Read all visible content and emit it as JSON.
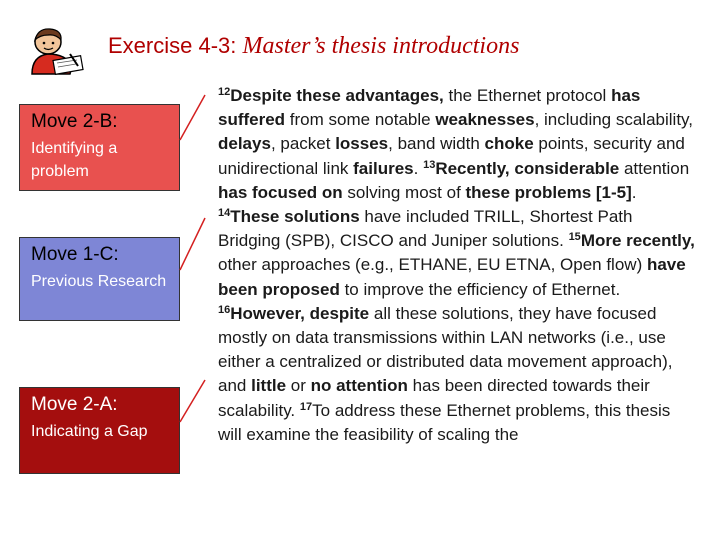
{
  "title": {
    "exercise": "Exercise 4-3:",
    "subtitle": "Master’s thesis introductions"
  },
  "moves": [
    {
      "title": "Move 2-B:",
      "desc": "Identifying a problem"
    },
    {
      "title": "Move 1-C:",
      "desc": "Previous Research"
    },
    {
      "title": "Move 2-A:",
      "desc": "Indicating a Gap"
    }
  ],
  "colors": {
    "title": "#b00000",
    "move_2b": "#e8514f",
    "move_1c": "#7e86d6",
    "move_2a": "#a40e0e"
  },
  "icons": [
    "person-writing-icon"
  ],
  "paragraph": [
    {
      "t": "12",
      "sup": true
    },
    {
      "t": "Despite these advantages,",
      "b": true
    },
    {
      "t": " the Ethernet protocol "
    },
    {
      "t": "has suffered",
      "b": true
    },
    {
      "t": " from some notable "
    },
    {
      "t": "weaknesses",
      "b": true
    },
    {
      "t": ", including scalability, "
    },
    {
      "t": "delays",
      "b": true
    },
    {
      "t": ", packet "
    },
    {
      "t": "losses",
      "b": true
    },
    {
      "t": ", band width "
    },
    {
      "t": "choke",
      "b": true
    },
    {
      "t": " points, security and unidirectional link "
    },
    {
      "t": "failures",
      "b": true
    },
    {
      "t": ". "
    },
    {
      "t": "13",
      "sup": true
    },
    {
      "t": "Recently, considerable",
      "b": true
    },
    {
      "t": " attention "
    },
    {
      "t": "has focused on",
      "b": true
    },
    {
      "t": " solving most of "
    },
    {
      "t": "these problems [1-5]",
      "b": true
    },
    {
      "t": ". "
    },
    {
      "t": "14",
      "sup": true
    },
    {
      "t": "These solutions",
      "b": true
    },
    {
      "t": " have included TRILL, Shortest Path Bridging (SPB), CISCO and Juniper solutions. "
    },
    {
      "t": "15",
      "sup": true
    },
    {
      "t": "More recently,",
      "b": true
    },
    {
      "t": " other approaches (e.g., ETHANE, EU ETNA, Open flow) "
    },
    {
      "t": "have been proposed",
      "b": true
    },
    {
      "t": " to improve the efficiency of Ethernet. "
    },
    {
      "t": "16",
      "sup": true
    },
    {
      "t": "However, despite",
      "b": true
    },
    {
      "t": " all these solutions, they have focused mostly on data transmissions within LAN networks (i.e., use either a centralized or distributed data movement approach), and "
    },
    {
      "t": "little",
      "b": true
    },
    {
      "t": " or "
    },
    {
      "t": "no attention",
      "b": true
    },
    {
      "t": " has been directed towards their scalability. "
    },
    {
      "t": "17",
      "sup": true
    },
    {
      "t": "To address these Ethernet problems, this thesis will examine the feasibility of scaling the"
    }
  ]
}
